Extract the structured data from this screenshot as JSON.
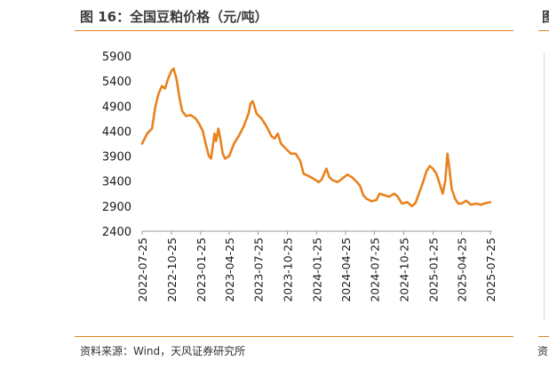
{
  "figure": {
    "title": "图 16：全国豆粕价格（元/吨）",
    "source": "资料来源：Wind，天风证券研究所",
    "right_title_fragment": "图",
    "right_source_fragment": "资"
  },
  "colors": {
    "accent": "#e8821e",
    "line": "#e8821e"
  },
  "chart_data": {
    "type": "line",
    "title": "图 16：全国豆粕价格（元/吨）",
    "xlabel": "",
    "ylabel": "",
    "ylim": [
      2400,
      5900
    ],
    "yticks": [
      2400,
      2900,
      3400,
      3900,
      4400,
      4900,
      5400,
      5900
    ],
    "xticks": [
      "2022-07-25",
      "2022-10-25",
      "2023-01-25",
      "2023-04-25",
      "2023-07-25",
      "2023-10-25",
      "2024-01-25",
      "2024-04-25",
      "2024-07-25",
      "2024-10-25",
      "2025-01-25",
      "2025-04-25",
      "2025-07-25"
    ],
    "grid": false,
    "legend": "none",
    "series": [
      {
        "values": [
          [
            "2022-07-25",
            4150
          ],
          [
            "2022-08-10",
            4350
          ],
          [
            "2022-08-25",
            4450
          ],
          [
            "2022-09-05",
            4900
          ],
          [
            "2022-09-15",
            5150
          ],
          [
            "2022-09-25",
            5300
          ],
          [
            "2022-10-05",
            5250
          ],
          [
            "2022-10-15",
            5450
          ],
          [
            "2022-10-25",
            5600
          ],
          [
            "2022-11-01",
            5650
          ],
          [
            "2022-11-10",
            5450
          ],
          [
            "2022-11-20",
            5050
          ],
          [
            "2022-11-28",
            4800
          ],
          [
            "2022-12-10",
            4700
          ],
          [
            "2022-12-25",
            4720
          ],
          [
            "2023-01-10",
            4650
          ],
          [
            "2023-01-20",
            4550
          ],
          [
            "2023-02-01",
            4400
          ],
          [
            "2023-02-10",
            4150
          ],
          [
            "2023-02-20",
            3900
          ],
          [
            "2023-02-27",
            3850
          ],
          [
            "2023-03-10",
            4350
          ],
          [
            "2023-03-15",
            4200
          ],
          [
            "2023-03-22",
            4450
          ],
          [
            "2023-03-28",
            4250
          ],
          [
            "2023-04-05",
            3950
          ],
          [
            "2023-04-12",
            3850
          ],
          [
            "2023-04-25",
            3900
          ],
          [
            "2023-05-10",
            4150
          ],
          [
            "2023-05-25",
            4300
          ],
          [
            "2023-06-10",
            4500
          ],
          [
            "2023-06-25",
            4750
          ],
          [
            "2023-07-01",
            4950
          ],
          [
            "2023-07-08",
            5000
          ],
          [
            "2023-07-20",
            4750
          ],
          [
            "2023-08-05",
            4650
          ],
          [
            "2023-08-20",
            4500
          ],
          [
            "2023-09-05",
            4300
          ],
          [
            "2023-09-15",
            4250
          ],
          [
            "2023-09-25",
            4350
          ],
          [
            "2023-10-05",
            4150
          ],
          [
            "2023-10-20",
            4050
          ],
          [
            "2023-11-05",
            3950
          ],
          [
            "2023-11-20",
            3950
          ],
          [
            "2023-12-05",
            3800
          ],
          [
            "2023-12-15",
            3550
          ],
          [
            "2023-12-31",
            3500
          ],
          [
            "2024-01-15",
            3450
          ],
          [
            "2024-01-31",
            3380
          ],
          [
            "2024-02-10",
            3430
          ],
          [
            "2024-02-18",
            3550
          ],
          [
            "2024-02-25",
            3650
          ],
          [
            "2024-03-05",
            3480
          ],
          [
            "2024-03-15",
            3420
          ],
          [
            "2024-03-31",
            3380
          ],
          [
            "2024-04-15",
            3450
          ],
          [
            "2024-05-01",
            3530
          ],
          [
            "2024-05-15",
            3480
          ],
          [
            "2024-05-31",
            3380
          ],
          [
            "2024-06-10",
            3300
          ],
          [
            "2024-06-20",
            3120
          ],
          [
            "2024-06-30",
            3050
          ],
          [
            "2024-07-15",
            3000
          ],
          [
            "2024-07-31",
            3020
          ],
          [
            "2024-08-10",
            3150
          ],
          [
            "2024-08-25",
            3120
          ],
          [
            "2024-09-10",
            3090
          ],
          [
            "2024-09-25",
            3150
          ],
          [
            "2024-10-05",
            3100
          ],
          [
            "2024-10-20",
            2950
          ],
          [
            "2024-11-05",
            2980
          ],
          [
            "2024-11-20",
            2900
          ],
          [
            "2024-12-01",
            2960
          ],
          [
            "2024-12-15",
            3200
          ],
          [
            "2024-12-25",
            3380
          ],
          [
            "2025-01-05",
            3600
          ],
          [
            "2025-01-15",
            3700
          ],
          [
            "2025-01-25",
            3650
          ],
          [
            "2025-02-05",
            3550
          ],
          [
            "2025-02-15",
            3350
          ],
          [
            "2025-02-25",
            3150
          ],
          [
            "2025-03-05",
            3400
          ],
          [
            "2025-03-12",
            3950
          ],
          [
            "2025-03-18",
            3650
          ],
          [
            "2025-03-25",
            3250
          ],
          [
            "2025-04-05",
            3050
          ],
          [
            "2025-04-15",
            2950
          ],
          [
            "2025-04-25",
            2950
          ],
          [
            "2025-05-10",
            3010
          ],
          [
            "2025-05-25",
            2930
          ],
          [
            "2025-06-10",
            2950
          ],
          [
            "2025-06-25",
            2930
          ],
          [
            "2025-07-10",
            2960
          ],
          [
            "2025-07-25",
            2980
          ]
        ]
      }
    ]
  }
}
